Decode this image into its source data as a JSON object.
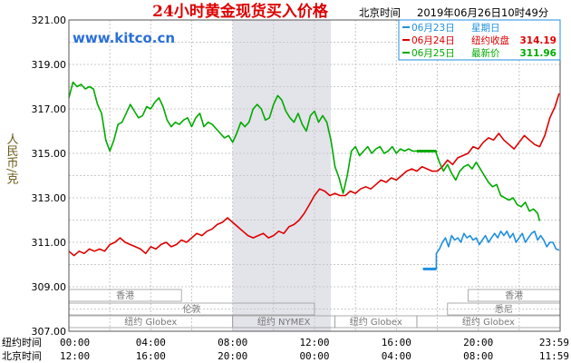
{
  "chart_data": {
    "type": "line",
    "title": "24小时黄金现货买入价格",
    "timezone_label": "北京时间",
    "timestamp": "2019年06月26日10时49分",
    "watermark": "www.kitco.cn",
    "ylabel": "人民币/克",
    "ylim": [
      307.0,
      321.0
    ],
    "y_ticks": [
      "321.00",
      "319.00",
      "317.00",
      "315.00",
      "313.00",
      "311.00",
      "309.00",
      "307.00"
    ],
    "grid": true,
    "x_axis_rows": [
      {
        "label": "纽约时间",
        "ticks": [
          "00:00",
          "04:00",
          "08:00",
          "12:00",
          "16:00",
          "20:00",
          "23:59"
        ]
      },
      {
        "label": "北京时间",
        "ticks": [
          "12:00",
          "16:00",
          "20:00",
          "00:00",
          "04:00",
          "08:00",
          "11:59"
        ]
      }
    ],
    "highlight_hours": [
      8,
      12.8
    ],
    "legend": {
      "placement": "top-right",
      "entries": [
        {
          "date": "06月23日",
          "label": "星期日",
          "value": "",
          "color": "#1f8fe0"
        },
        {
          "date": "06月24日",
          "label": "纽约收盘",
          "value": "314.19",
          "color": "#dd0000"
        },
        {
          "date": "06月25日",
          "label": "最新价",
          "value": "311.96",
          "color": "#00aa00"
        }
      ]
    },
    "market_rows": [
      {
        "sessions": [
          {
            "label": "香港",
            "start": 0,
            "end": 5.5
          },
          {
            "label": "香港",
            "start": 19.5,
            "end": 24
          }
        ]
      },
      {
        "sessions": [
          {
            "label": "伦敦",
            "start": 0,
            "end": 12
          },
          {
            "label": "悉尼",
            "start": 18.5,
            "end": 24
          }
        ]
      },
      {
        "sessions": [
          {
            "label": "纽约 Globex",
            "start": 0,
            "end": 8
          },
          {
            "label": "纽约 NYMEX",
            "start": 8,
            "end": 13
          },
          {
            "label": "纽约 Globex",
            "start": 13,
            "end": 17
          },
          {
            "label": "纽约 Globex",
            "start": 17,
            "end": 24
          }
        ]
      }
    ],
    "series": [
      {
        "name": "06月23日",
        "color": "#1f8fe0",
        "points": [
          [
            17.3,
            309.8
          ],
          [
            17.95,
            309.8
          ],
          [
            17.95,
            310.5
          ],
          [
            18.1,
            310.7
          ],
          [
            18.25,
            311.0
          ],
          [
            18.4,
            311.2
          ],
          [
            18.55,
            310.8
          ],
          [
            18.7,
            311.3
          ],
          [
            18.85,
            311.1
          ],
          [
            19.0,
            311.2
          ],
          [
            19.15,
            311.0
          ],
          [
            19.3,
            311.4
          ],
          [
            19.45,
            311.2
          ],
          [
            19.6,
            311.3
          ],
          [
            19.75,
            311.1
          ],
          [
            19.9,
            311.2
          ],
          [
            20.05,
            310.9
          ],
          [
            20.2,
            311.1
          ],
          [
            20.35,
            311.3
          ],
          [
            20.5,
            311.0
          ],
          [
            20.65,
            311.2
          ],
          [
            20.8,
            311.4
          ],
          [
            20.95,
            311.2
          ],
          [
            21.1,
            311.5
          ],
          [
            21.25,
            311.3
          ],
          [
            21.4,
            311.5
          ],
          [
            21.55,
            311.2
          ],
          [
            21.7,
            311.4
          ],
          [
            21.85,
            311.0
          ],
          [
            22.0,
            311.2
          ],
          [
            22.15,
            311.4
          ],
          [
            22.3,
            311.0
          ],
          [
            22.45,
            311.2
          ],
          [
            22.6,
            311.4
          ],
          [
            22.75,
            311.5
          ],
          [
            22.9,
            311.1
          ],
          [
            23.05,
            311.3
          ],
          [
            23.2,
            311.1
          ],
          [
            23.35,
            310.8
          ],
          [
            23.5,
            311.0
          ],
          [
            23.65,
            311.0
          ],
          [
            23.8,
            310.7
          ],
          [
            23.95,
            310.65
          ]
        ]
      },
      {
        "name": "06月24日",
        "color": "#dd0000",
        "points": [
          [
            0.0,
            310.6
          ],
          [
            0.25,
            310.4
          ],
          [
            0.5,
            310.6
          ],
          [
            0.75,
            310.5
          ],
          [
            1.0,
            310.7
          ],
          [
            1.25,
            310.6
          ],
          [
            1.5,
            310.7
          ],
          [
            1.75,
            310.6
          ],
          [
            2.0,
            310.9
          ],
          [
            2.25,
            311.0
          ],
          [
            2.5,
            311.2
          ],
          [
            2.75,
            311.0
          ],
          [
            3.0,
            310.9
          ],
          [
            3.25,
            310.8
          ],
          [
            3.5,
            310.7
          ],
          [
            3.75,
            310.5
          ],
          [
            4.0,
            310.8
          ],
          [
            4.25,
            310.7
          ],
          [
            4.5,
            310.9
          ],
          [
            4.75,
            311.0
          ],
          [
            5.0,
            310.8
          ],
          [
            5.25,
            310.9
          ],
          [
            5.5,
            311.1
          ],
          [
            5.75,
            311.0
          ],
          [
            6.0,
            311.2
          ],
          [
            6.25,
            311.4
          ],
          [
            6.5,
            311.3
          ],
          [
            6.75,
            311.5
          ],
          [
            7.0,
            311.6
          ],
          [
            7.25,
            311.8
          ],
          [
            7.5,
            311.9
          ],
          [
            7.75,
            312.1
          ],
          [
            8.0,
            311.9
          ],
          [
            8.25,
            311.7
          ],
          [
            8.5,
            311.5
          ],
          [
            8.75,
            311.3
          ],
          [
            9.0,
            311.2
          ],
          [
            9.25,
            311.3
          ],
          [
            9.5,
            311.4
          ],
          [
            9.75,
            311.2
          ],
          [
            10.0,
            311.3
          ],
          [
            10.25,
            311.5
          ],
          [
            10.5,
            311.4
          ],
          [
            10.75,
            311.7
          ],
          [
            11.0,
            311.8
          ],
          [
            11.25,
            312.0
          ],
          [
            11.5,
            312.3
          ],
          [
            11.75,
            312.7
          ],
          [
            12.0,
            313.1
          ],
          [
            12.25,
            313.4
          ],
          [
            12.5,
            313.3
          ],
          [
            12.75,
            313.1
          ],
          [
            13.0,
            313.2
          ],
          [
            13.25,
            313.1
          ],
          [
            13.5,
            313.1
          ],
          [
            13.75,
            313.3
          ],
          [
            14.0,
            313.2
          ],
          [
            14.25,
            313.4
          ],
          [
            14.5,
            313.5
          ],
          [
            14.75,
            313.4
          ],
          [
            15.0,
            313.6
          ],
          [
            15.25,
            313.8
          ],
          [
            15.5,
            313.7
          ],
          [
            15.75,
            313.9
          ],
          [
            16.0,
            313.8
          ],
          [
            16.25,
            314.0
          ],
          [
            16.5,
            314.2
          ],
          [
            16.75,
            314.3
          ],
          [
            17.0,
            314.2
          ],
          [
            17.25,
            314.4
          ],
          [
            17.5,
            314.3
          ],
          [
            17.75,
            314.2
          ],
          [
            18.0,
            314.2
          ],
          [
            18.25,
            314.4
          ],
          [
            18.5,
            314.7
          ],
          [
            18.75,
            314.5
          ],
          [
            19.0,
            314.8
          ],
          [
            19.25,
            314.9
          ],
          [
            19.5,
            315.0
          ],
          [
            19.75,
            315.3
          ],
          [
            20.0,
            315.2
          ],
          [
            20.25,
            315.5
          ],
          [
            20.5,
            315.7
          ],
          [
            20.75,
            315.6
          ],
          [
            21.0,
            315.9
          ],
          [
            21.25,
            315.6
          ],
          [
            21.5,
            315.4
          ],
          [
            21.75,
            315.2
          ],
          [
            22.0,
            315.5
          ],
          [
            22.25,
            315.8
          ],
          [
            22.5,
            315.6
          ],
          [
            22.75,
            315.4
          ],
          [
            23.0,
            315.3
          ],
          [
            23.25,
            315.8
          ],
          [
            23.5,
            316.6
          ],
          [
            23.75,
            317.1
          ],
          [
            23.95,
            317.7
          ]
        ]
      },
      {
        "name": "06月25日",
        "color": "#00aa00",
        "points": [
          [
            0.0,
            317.5
          ],
          [
            0.2,
            318.2
          ],
          [
            0.4,
            318.0
          ],
          [
            0.6,
            318.1
          ],
          [
            0.8,
            317.9
          ],
          [
            1.0,
            318.0
          ],
          [
            1.2,
            317.9
          ],
          [
            1.4,
            317.2
          ],
          [
            1.6,
            316.8
          ],
          [
            1.8,
            315.6
          ],
          [
            2.0,
            315.1
          ],
          [
            2.2,
            315.6
          ],
          [
            2.4,
            316.3
          ],
          [
            2.6,
            316.4
          ],
          [
            2.8,
            316.8
          ],
          [
            3.0,
            317.2
          ],
          [
            3.2,
            316.9
          ],
          [
            3.4,
            316.6
          ],
          [
            3.6,
            316.7
          ],
          [
            3.8,
            317.1
          ],
          [
            4.0,
            317.0
          ],
          [
            4.2,
            317.3
          ],
          [
            4.4,
            317.5
          ],
          [
            4.6,
            317.1
          ],
          [
            4.8,
            316.5
          ],
          [
            5.0,
            316.2
          ],
          [
            5.2,
            316.4
          ],
          [
            5.4,
            316.3
          ],
          [
            5.6,
            316.5
          ],
          [
            5.8,
            316.6
          ],
          [
            6.0,
            316.2
          ],
          [
            6.2,
            316.6
          ],
          [
            6.4,
            316.8
          ],
          [
            6.6,
            316.2
          ],
          [
            6.8,
            316.4
          ],
          [
            7.0,
            316.3
          ],
          [
            7.2,
            316.1
          ],
          [
            7.4,
            315.9
          ],
          [
            7.6,
            315.7
          ],
          [
            7.8,
            315.8
          ],
          [
            8.0,
            315.5
          ],
          [
            8.2,
            315.9
          ],
          [
            8.4,
            316.4
          ],
          [
            8.6,
            316.2
          ],
          [
            8.8,
            316.4
          ],
          [
            9.0,
            317.0
          ],
          [
            9.2,
            317.2
          ],
          [
            9.4,
            317.0
          ],
          [
            9.6,
            316.5
          ],
          [
            9.8,
            316.6
          ],
          [
            10.0,
            317.2
          ],
          [
            10.2,
            317.6
          ],
          [
            10.4,
            317.4
          ],
          [
            10.6,
            316.9
          ],
          [
            10.8,
            316.6
          ],
          [
            11.0,
            316.4
          ],
          [
            11.2,
            316.8
          ],
          [
            11.4,
            316.3
          ],
          [
            11.6,
            316.0
          ],
          [
            11.8,
            316.7
          ],
          [
            12.0,
            316.9
          ],
          [
            12.2,
            316.4
          ],
          [
            12.4,
            316.7
          ],
          [
            12.6,
            316.4
          ],
          [
            12.8,
            315.6
          ],
          [
            13.0,
            314.4
          ],
          [
            13.2,
            313.9
          ],
          [
            13.4,
            313.2
          ],
          [
            13.6,
            314.0
          ],
          [
            13.8,
            315.1
          ],
          [
            14.0,
            315.3
          ],
          [
            14.2,
            314.9
          ],
          [
            14.4,
            315.1
          ],
          [
            14.6,
            315.3
          ],
          [
            14.8,
            315.0
          ],
          [
            15.0,
            315.2
          ],
          [
            15.2,
            315.3
          ],
          [
            15.4,
            315.0
          ],
          [
            15.6,
            315.1
          ],
          [
            15.8,
            315.3
          ],
          [
            16.0,
            315.0
          ],
          [
            16.2,
            315.2
          ],
          [
            16.4,
            315.1
          ],
          [
            16.6,
            315.2
          ],
          [
            16.8,
            315.1
          ],
          [
            17.0,
            315.1
          ],
          [
            17.3,
            315.1
          ],
          [
            17.6,
            315.1
          ],
          [
            17.95,
            315.1
          ],
          [
            17.95,
            315.0
          ],
          [
            18.1,
            314.6
          ],
          [
            18.3,
            314.2
          ],
          [
            18.5,
            314.5
          ],
          [
            18.7,
            314.1
          ],
          [
            18.9,
            313.8
          ],
          [
            19.1,
            314.2
          ],
          [
            19.3,
            314.4
          ],
          [
            19.5,
            314.5
          ],
          [
            19.7,
            314.3
          ],
          [
            19.9,
            314.6
          ],
          [
            20.1,
            314.3
          ],
          [
            20.3,
            314.0
          ],
          [
            20.5,
            313.7
          ],
          [
            20.7,
            313.5
          ],
          [
            20.9,
            313.6
          ],
          [
            21.1,
            313.1
          ],
          [
            21.3,
            313.0
          ],
          [
            21.5,
            312.9
          ],
          [
            21.7,
            313.0
          ],
          [
            21.9,
            312.7
          ],
          [
            22.1,
            312.6
          ],
          [
            22.3,
            312.8
          ],
          [
            22.5,
            312.4
          ],
          [
            22.7,
            312.5
          ],
          [
            22.9,
            312.3
          ],
          [
            23.0,
            311.96
          ]
        ]
      }
    ]
  }
}
